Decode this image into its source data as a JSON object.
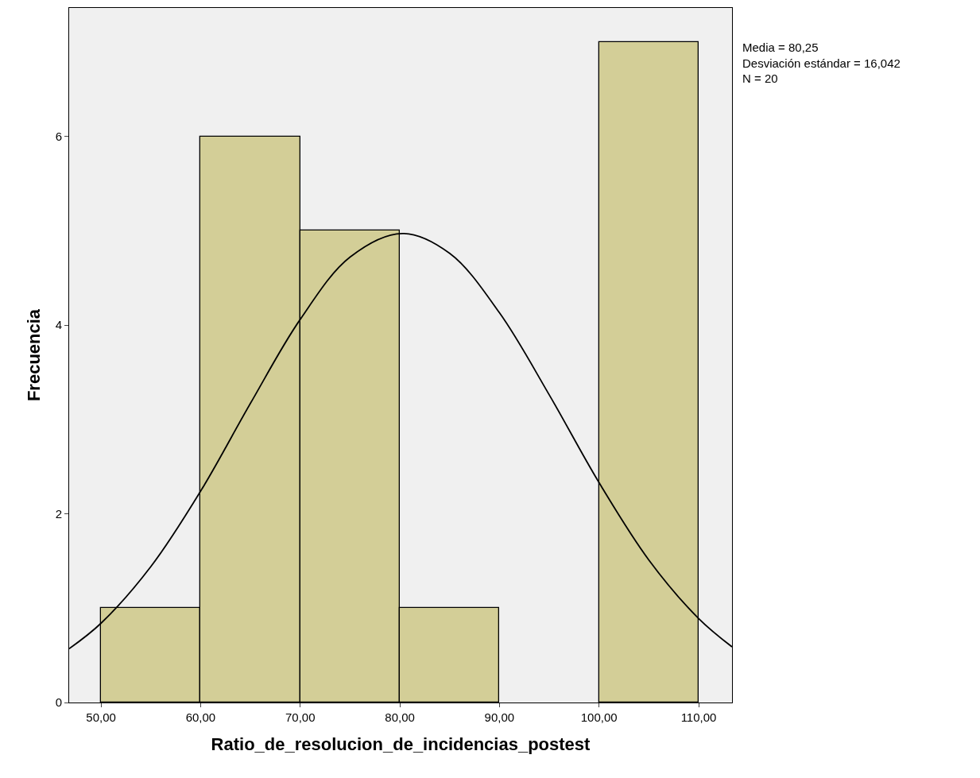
{
  "chart_data": {
    "type": "histogram",
    "xlabel": "Ratio_de_resolucion_de_incidencias_postest",
    "ylabel": "Frecuencia",
    "bins": [
      50,
      60,
      70,
      80,
      90,
      100,
      110
    ],
    "values": [
      1,
      6,
      5,
      1,
      0,
      7
    ],
    "color": "#d3ce97",
    "series": [
      {
        "type": "line",
        "color": "#000000",
        "x": [
          46.8,
          50,
          55,
          60,
          65,
          70,
          75,
          80.25,
          85,
          90,
          95,
          100,
          105,
          110,
          113.35
        ],
        "values": [
          0.57,
          0.84,
          1.44,
          2.24,
          3.17,
          4.06,
          4.72,
          4.97,
          4.76,
          4.13,
          3.26,
          2.33,
          1.51,
          0.89,
          0.59
        ]
      }
    ],
    "xlim": [
      46.8,
      113.35
    ],
    "ylim": [
      0,
      7.36
    ],
    "xticks": [
      {
        "value": 50,
        "label": "50,00"
      },
      {
        "value": 60,
        "label": "60,00"
      },
      {
        "value": 70,
        "label": "70,00"
      },
      {
        "value": 80,
        "label": "80,00"
      },
      {
        "value": 90,
        "label": "90,00"
      },
      {
        "value": 100,
        "label": "100,00"
      },
      {
        "value": 110,
        "label": "110,00"
      }
    ],
    "yticks": [
      0,
      2,
      4,
      6
    ],
    "grid": false,
    "annotations": [
      "Media = 80,25",
      "Desviación estándar = 16,042",
      "N = 20"
    ]
  }
}
